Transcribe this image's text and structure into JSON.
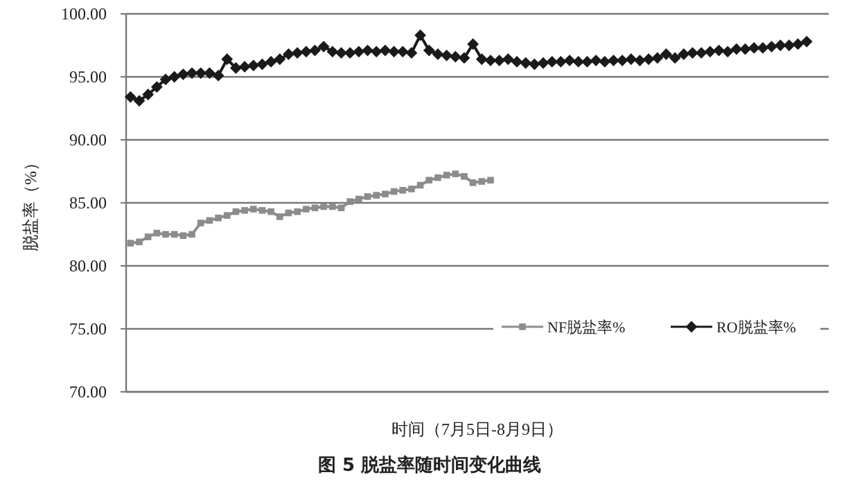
{
  "chart_data": {
    "type": "line",
    "title": "图 5 脱盐率随时间变化曲线",
    "xlabel": "时间（7月5日-8月9日）",
    "ylabel": "脱盐率（%）",
    "categories": [
      null,
      null,
      null,
      null,
      null,
      null,
      null,
      null,
      null,
      null,
      null,
      null,
      null,
      null,
      null,
      null,
      null,
      null,
      null,
      null,
      null,
      null,
      null,
      null,
      null,
      null,
      null,
      null,
      null,
      null,
      null,
      null,
      null,
      null,
      null,
      null,
      null,
      null,
      null,
      null,
      null,
      null,
      null,
      null,
      null,
      null,
      null,
      null,
      null,
      null,
      null,
      null,
      null,
      null,
      null,
      null,
      null,
      null,
      null,
      null,
      null,
      null,
      null,
      null,
      null,
      null,
      null,
      null,
      null,
      null,
      null,
      null,
      null,
      null,
      null,
      null,
      null,
      null,
      null,
      null
    ],
    "series": [
      {
        "name": "NF脱盐率%",
        "color": "#8c8c8c",
        "marker": "square",
        "values": [
          81.8,
          81.9,
          82.3,
          82.6,
          82.5,
          82.5,
          82.4,
          82.5,
          83.4,
          83.6,
          83.8,
          84.0,
          84.3,
          84.4,
          84.5,
          84.4,
          84.3,
          83.9,
          84.2,
          84.3,
          84.5,
          84.6,
          84.7,
          84.7,
          84.6,
          85.1,
          85.3,
          85.5,
          85.6,
          85.7,
          85.9,
          86.0,
          86.1,
          86.4,
          86.8,
          87.0,
          87.2,
          87.3,
          87.1,
          86.6,
          86.7,
          86.8,
          null,
          null,
          null,
          null,
          null,
          null,
          null,
          null,
          null,
          null,
          null,
          null,
          null,
          null,
          null,
          null,
          null,
          null,
          null,
          null,
          null,
          null,
          null,
          null,
          null,
          null,
          null,
          null,
          null,
          null,
          null,
          null,
          null,
          null,
          null,
          null,
          null,
          null
        ]
      },
      {
        "name": "RO脱盐率%",
        "color": "#1a1a1a",
        "marker": "diamond",
        "values": [
          93.4,
          93.1,
          93.6,
          94.2,
          94.8,
          95.0,
          95.2,
          95.3,
          95.3,
          95.3,
          95.1,
          96.4,
          95.7,
          95.8,
          95.9,
          96.0,
          96.2,
          96.4,
          96.8,
          96.9,
          97.0,
          97.1,
          97.4,
          97.0,
          96.9,
          96.9,
          97.0,
          97.1,
          97.0,
          97.1,
          97.0,
          97.0,
          96.9,
          98.3,
          97.1,
          96.8,
          96.7,
          96.6,
          96.5,
          97.6,
          96.4,
          96.3,
          96.3,
          96.4,
          96.2,
          96.1,
          96.0,
          96.1,
          96.2,
          96.2,
          96.3,
          96.2,
          96.2,
          96.3,
          96.2,
          96.3,
          96.3,
          96.4,
          96.3,
          96.4,
          96.5,
          96.8,
          96.5,
          96.8,
          96.9,
          96.9,
          97.0,
          97.1,
          97.0,
          97.2,
          97.2,
          97.3,
          97.3,
          97.4,
          97.5,
          97.5,
          97.6,
          97.8,
          null,
          null
        ]
      }
    ],
    "ylim": [
      70,
      100
    ],
    "yticks": [
      {
        "value": 70,
        "label": "70.00"
      },
      {
        "value": 75,
        "label": "75.00"
      },
      {
        "value": 80,
        "label": "80.00"
      },
      {
        "value": 85,
        "label": "85.00"
      },
      {
        "value": 90,
        "label": "90.00"
      },
      {
        "value": 95,
        "label": "95.00"
      },
      {
        "value": 100,
        "label": "100.00"
      }
    ],
    "grid": "y",
    "legend": "bottom right",
    "tick_labels": "y"
  }
}
